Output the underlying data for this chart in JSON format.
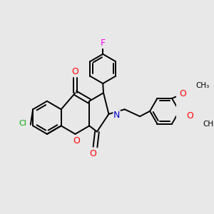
{
  "bg_color": "#e8e8e8",
  "bond_color": "#000000",
  "atom_colors": {
    "O": "#ff0000",
    "N": "#0000cc",
    "Cl": "#00aa00",
    "F": "#ff00ff"
  },
  "lw": 1.4
}
